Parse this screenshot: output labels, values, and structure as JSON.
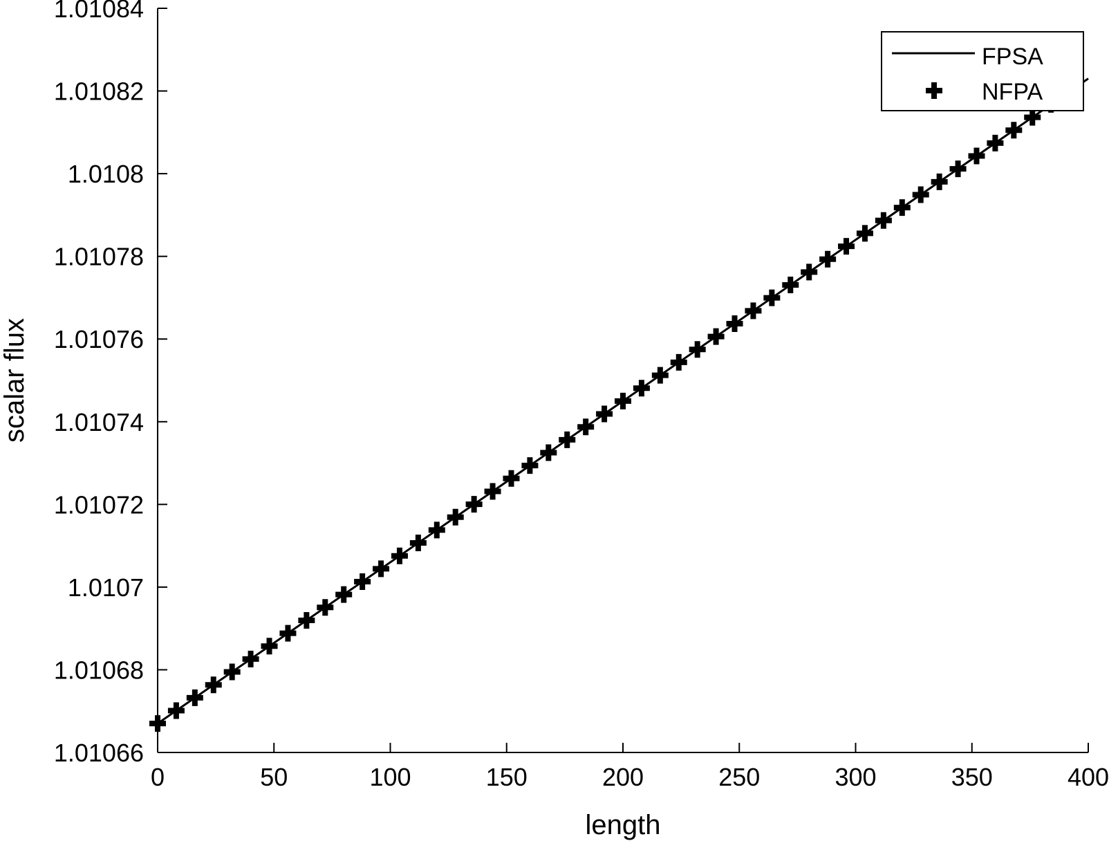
{
  "chart_data": {
    "type": "line",
    "xlabel": "length",
    "ylabel": "scalar flux",
    "xlim": [
      0,
      400
    ],
    "ylim": [
      1.01066,
      1.01084
    ],
    "x_ticks": [
      0,
      50,
      100,
      150,
      200,
      250,
      300,
      350,
      400
    ],
    "x_tick_labels": [
      "0",
      "50",
      "100",
      "150",
      "200",
      "250",
      "300",
      "350",
      "400"
    ],
    "y_ticks": [
      1.01066,
      1.01068,
      1.0107,
      1.01072,
      1.01074,
      1.01076,
      1.01078,
      1.0108,
      1.01082,
      1.01084
    ],
    "y_tick_labels": [
      "1.01066",
      "1.01068",
      "1.0107",
      "1.01072",
      "1.01074",
      "1.01076",
      "1.01078",
      "1.0108",
      "1.01082",
      "1.01084"
    ],
    "grid": false,
    "legend_position": "top-right",
    "series": [
      {
        "name": "FPSA",
        "style": "solid line",
        "color": "#000000",
        "x": [
          0,
          400
        ],
        "y": [
          1.010667,
          1.010823
        ]
      },
      {
        "name": "NFPA",
        "style": "plus markers",
        "color": "#000000",
        "x_start": 0,
        "x_step": 8,
        "count": 50,
        "y_start": 1.010667,
        "y_slope": 3.9e-07
      }
    ]
  }
}
